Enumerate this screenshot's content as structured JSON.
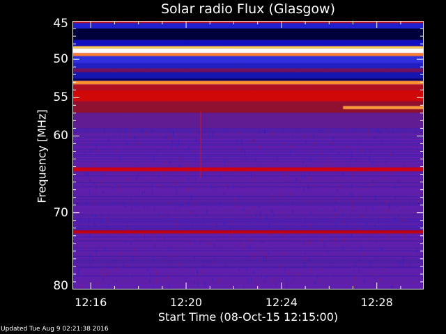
{
  "chart_data": {
    "type": "heatmap",
    "title": "Solar radio Flux (Glasgow)",
    "xlabel": "Start Time (08-Oct-15 12:15:00)",
    "ylabel": "Frequency [MHz]",
    "x_ticks": [
      "12:16",
      "12:20",
      "12:24",
      "12:28"
    ],
    "y_ticks": [
      45,
      50,
      55,
      60,
      70,
      80
    ],
    "xlim": [
      "12:15:14",
      "12:29:58"
    ],
    "ylim": [
      45,
      80
    ],
    "y_inverted": true,
    "colormap": "blue-purple-red-yellow-white",
    "background_color": "#5a22a8",
    "bands": [
      {
        "from": 45.0,
        "to": 45.3,
        "color": "#c01010"
      },
      {
        "from": 45.3,
        "to": 46.0,
        "color": "#2020d0"
      },
      {
        "from": 46.0,
        "to": 47.5,
        "color": "#00003a"
      },
      {
        "from": 47.5,
        "to": 48.3,
        "color": "#1010c0"
      },
      {
        "from": 48.3,
        "to": 48.6,
        "color": "#ffd040"
      },
      {
        "from": 48.6,
        "to": 49.2,
        "color": "#ffffff"
      },
      {
        "from": 49.2,
        "to": 49.6,
        "color": "#ff8030"
      },
      {
        "from": 49.6,
        "to": 50.5,
        "color": "#3030e0"
      },
      {
        "from": 50.5,
        "to": 51.2,
        "color": "#2020c0"
      },
      {
        "from": 51.2,
        "to": 51.7,
        "color": "#701060"
      },
      {
        "from": 51.7,
        "to": 52.5,
        "color": "#1515b0"
      },
      {
        "from": 52.5,
        "to": 52.8,
        "color": "#00006a"
      },
      {
        "from": 52.8,
        "to": 53.3,
        "color": "#ff9030"
      },
      {
        "from": 53.3,
        "to": 54.0,
        "color": "#b01020"
      },
      {
        "from": 54.0,
        "to": 55.5,
        "color": "#d00808"
      },
      {
        "from": 55.5,
        "to": 57.0,
        "color": "#901030"
      },
      {
        "from": 57.0,
        "to": 59.0,
        "color": "#601c90"
      },
      {
        "from": 64.1,
        "to": 64.6,
        "color": "#d00010"
      },
      {
        "from": 72.3,
        "to": 72.7,
        "color": "#c00010"
      }
    ],
    "bursts": [
      {
        "start": "12:26:35",
        "end": "12:29:58",
        "freq_from": 56.1,
        "freq_to": 56.5,
        "color": "#ffa040"
      }
    ],
    "updated": "Updated Tue Aug  9 02:21:38 2016"
  }
}
